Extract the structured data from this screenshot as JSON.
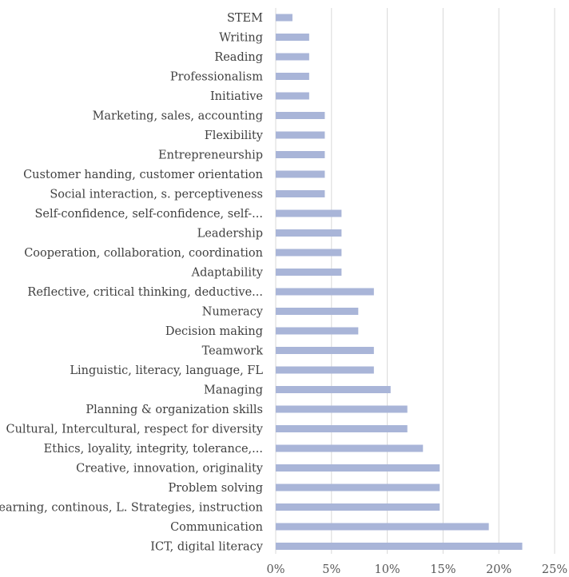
{
  "chart_data": {
    "type": "bar",
    "orientation": "horizontal",
    "categories": [
      "STEM",
      "Writing",
      "Reading",
      "Professionalism",
      "Initiative",
      "Marketing, sales, accounting",
      "Flexibility",
      "Entrepreneurship",
      "Customer handing, customer orientation",
      "Social interaction, s. perceptiveness",
      "Self-confidence, self-confidence, self-...",
      "Leadership",
      "Cooperation, collaboration, coordination",
      "Adaptability",
      "Reflective, critical thinking, deductive...",
      "Numeracy",
      "Decision making",
      "Teamwork",
      "Linguistic, literacy, language, FL",
      "Managing",
      "Planning & organization skills",
      "Cultural, Intercultural, respect for diversity",
      "Ethics, loyality, integrity, tolerance,...",
      "Creative, innovation, originality",
      "Problem solving",
      "Learning, continous, L. Strategies, instruction",
      "Communication",
      "ICT, digital literacy"
    ],
    "values": [
      1.5,
      3.0,
      3.0,
      3.0,
      3.0,
      4.4,
      4.4,
      4.4,
      4.4,
      4.4,
      5.9,
      5.9,
      5.9,
      5.9,
      8.8,
      7.4,
      7.4,
      8.8,
      8.8,
      10.3,
      11.8,
      11.8,
      13.2,
      14.7,
      14.7,
      14.7,
      19.1,
      22.1
    ],
    "xlim": [
      0,
      25
    ],
    "x_ticks": [
      "0%",
      "5%",
      "10%",
      "15%",
      "20%",
      "25%"
    ],
    "x_tick_values": [
      0,
      5,
      10,
      15,
      20,
      25
    ],
    "grid": true,
    "legend": "none",
    "bar_color": "#a9b5d8",
    "grid_color": "#d9d9d9",
    "title": "",
    "xlabel": "",
    "ylabel": ""
  }
}
